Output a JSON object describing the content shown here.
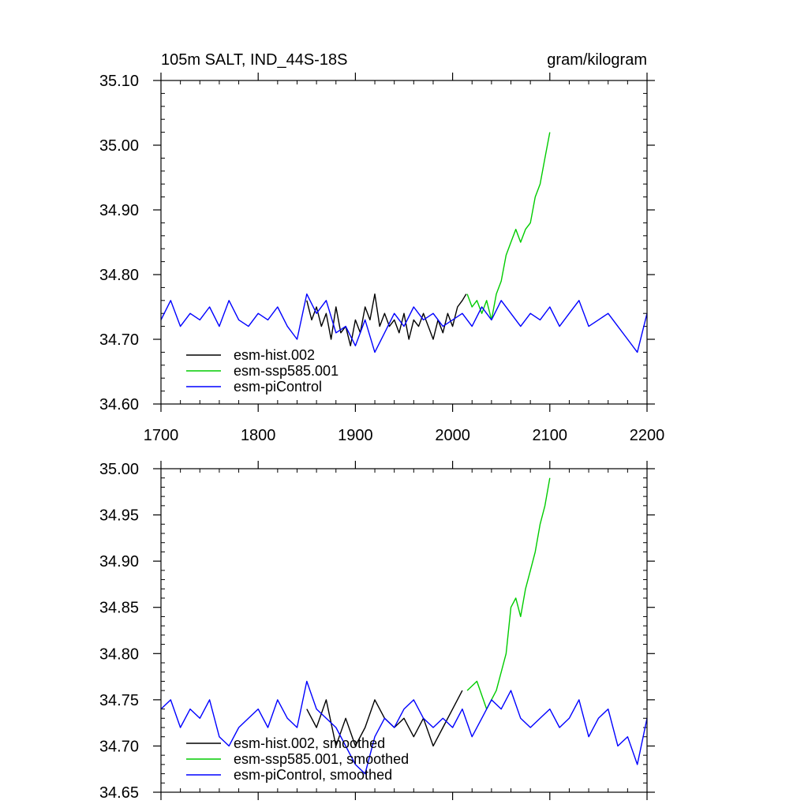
{
  "chart_data": [
    {
      "type": "line",
      "title": "105m SALT, IND_44S-18S",
      "units": "gram/kilogram",
      "xlim": [
        1700,
        2200
      ],
      "ylim": [
        34.6,
        35.1
      ],
      "x_ticks": [
        1700,
        1800,
        1900,
        2000,
        2100,
        2200
      ],
      "x_tick_labels": [
        "1700",
        "1800",
        "1900",
        "2000",
        "2100",
        "2200"
      ],
      "y_ticks": [
        34.6,
        34.7,
        34.8,
        34.9,
        35.0,
        35.1
      ],
      "y_tick_labels": [
        "34.60",
        "34.70",
        "34.80",
        "34.90",
        "35.00",
        "35.10"
      ],
      "legend_position": "bottom-left",
      "series": [
        {
          "name": "esm-hist.002",
          "color": "#000000",
          "x": [
            1850,
            1855,
            1860,
            1865,
            1870,
            1875,
            1880,
            1885,
            1890,
            1895,
            1900,
            1905,
            1910,
            1915,
            1920,
            1925,
            1930,
            1935,
            1940,
            1945,
            1950,
            1955,
            1960,
            1965,
            1970,
            1975,
            1980,
            1985,
            1990,
            1995,
            2000,
            2005,
            2010,
            2014
          ],
          "y": [
            34.76,
            34.73,
            34.75,
            34.72,
            34.74,
            34.7,
            34.75,
            34.71,
            34.72,
            34.69,
            34.73,
            34.71,
            34.75,
            34.73,
            34.77,
            34.72,
            34.74,
            34.72,
            34.73,
            34.71,
            34.74,
            34.7,
            34.73,
            34.72,
            34.74,
            34.72,
            34.7,
            34.73,
            34.71,
            34.74,
            34.72,
            34.75,
            34.76,
            34.77
          ]
        },
        {
          "name": "esm-ssp585.001",
          "color": "#00cc00",
          "x": [
            2015,
            2020,
            2025,
            2030,
            2035,
            2040,
            2045,
            2050,
            2055,
            2060,
            2065,
            2070,
            2075,
            2080,
            2085,
            2090,
            2095,
            2100
          ],
          "y": [
            34.77,
            34.75,
            34.76,
            34.74,
            34.76,
            34.73,
            34.77,
            34.79,
            34.83,
            34.85,
            34.87,
            34.85,
            34.87,
            34.88,
            34.92,
            34.94,
            34.98,
            35.02
          ]
        },
        {
          "name": "esm-piControl",
          "color": "#0000ff",
          "x": [
            1700,
            1710,
            1720,
            1730,
            1740,
            1750,
            1760,
            1770,
            1780,
            1790,
            1800,
            1810,
            1820,
            1830,
            1840,
            1850,
            1860,
            1870,
            1880,
            1890,
            1900,
            1910,
            1920,
            1930,
            1940,
            1950,
            1960,
            1970,
            1980,
            1990,
            2000,
            2010,
            2020,
            2030,
            2040,
            2050,
            2060,
            2070,
            2080,
            2090,
            2100,
            2110,
            2120,
            2130,
            2140,
            2150,
            2160,
            2170,
            2180,
            2190,
            2200
          ],
          "y": [
            34.73,
            34.76,
            34.72,
            34.74,
            34.73,
            34.75,
            34.72,
            34.76,
            34.73,
            34.72,
            34.74,
            34.73,
            34.75,
            34.72,
            34.7,
            34.77,
            34.74,
            34.76,
            34.71,
            34.72,
            34.69,
            34.73,
            34.68,
            34.71,
            34.74,
            34.72,
            34.75,
            34.73,
            34.74,
            34.72,
            34.73,
            34.74,
            34.72,
            34.75,
            34.73,
            34.76,
            34.74,
            34.72,
            34.74,
            34.73,
            34.75,
            34.72,
            34.74,
            34.76,
            34.72,
            34.73,
            34.74,
            34.72,
            34.7,
            34.68,
            34.74
          ]
        }
      ]
    },
    {
      "type": "line",
      "title": "",
      "xlim": [
        1700,
        2200
      ],
      "ylim": [
        34.65,
        35.0
      ],
      "x_ticks": [
        1700,
        1800,
        1900,
        2000,
        2100,
        2200
      ],
      "y_ticks": [
        34.65,
        34.7,
        34.75,
        34.8,
        34.85,
        34.9,
        34.95,
        35.0
      ],
      "y_tick_labels": [
        "34.65",
        "34.70",
        "34.75",
        "34.80",
        "34.85",
        "34.90",
        "34.95",
        "35.00"
      ],
      "legend_position": "bottom-left",
      "series": [
        {
          "name": "esm-hist.002, smoothed",
          "color": "#000000",
          "x": [
            1850,
            1860,
            1870,
            1880,
            1890,
            1900,
            1910,
            1920,
            1930,
            1940,
            1950,
            1960,
            1970,
            1980,
            1990,
            2000,
            2010
          ],
          "y": [
            34.74,
            34.72,
            34.75,
            34.7,
            34.73,
            34.7,
            34.72,
            34.75,
            34.73,
            34.72,
            34.73,
            34.71,
            34.73,
            34.7,
            34.72,
            34.74,
            34.76
          ]
        },
        {
          "name": "esm-ssp585.001, smoothed",
          "color": "#00cc00",
          "x": [
            2015,
            2025,
            2035,
            2045,
            2055,
            2060,
            2065,
            2070,
            2075,
            2080,
            2085,
            2090,
            2095,
            2100
          ],
          "y": [
            34.76,
            34.77,
            34.74,
            34.76,
            34.8,
            34.85,
            34.86,
            34.84,
            34.87,
            34.89,
            34.91,
            34.94,
            34.96,
            34.99
          ]
        },
        {
          "name": "esm-piControl, smoothed",
          "color": "#0000ff",
          "x": [
            1700,
            1710,
            1720,
            1730,
            1740,
            1750,
            1760,
            1770,
            1780,
            1790,
            1800,
            1810,
            1820,
            1830,
            1840,
            1850,
            1860,
            1870,
            1880,
            1890,
            1900,
            1910,
            1920,
            1930,
            1940,
            1950,
            1960,
            1970,
            1980,
            1990,
            2000,
            2010,
            2020,
            2030,
            2040,
            2050,
            2060,
            2070,
            2080,
            2090,
            2100,
            2110,
            2120,
            2130,
            2140,
            2150,
            2160,
            2170,
            2180,
            2190,
            2200
          ],
          "y": [
            34.74,
            34.75,
            34.72,
            34.74,
            34.73,
            34.75,
            34.71,
            34.7,
            34.72,
            34.73,
            34.74,
            34.72,
            34.75,
            34.73,
            34.72,
            34.77,
            34.74,
            34.73,
            34.72,
            34.7,
            34.68,
            34.67,
            34.71,
            34.73,
            34.72,
            34.74,
            34.75,
            34.73,
            34.72,
            34.73,
            34.72,
            34.74,
            34.71,
            34.73,
            34.75,
            34.74,
            34.76,
            34.73,
            34.72,
            34.73,
            34.74,
            34.72,
            34.73,
            34.75,
            34.71,
            34.73,
            34.74,
            34.7,
            34.71,
            34.68,
            34.73
          ]
        }
      ]
    }
  ]
}
